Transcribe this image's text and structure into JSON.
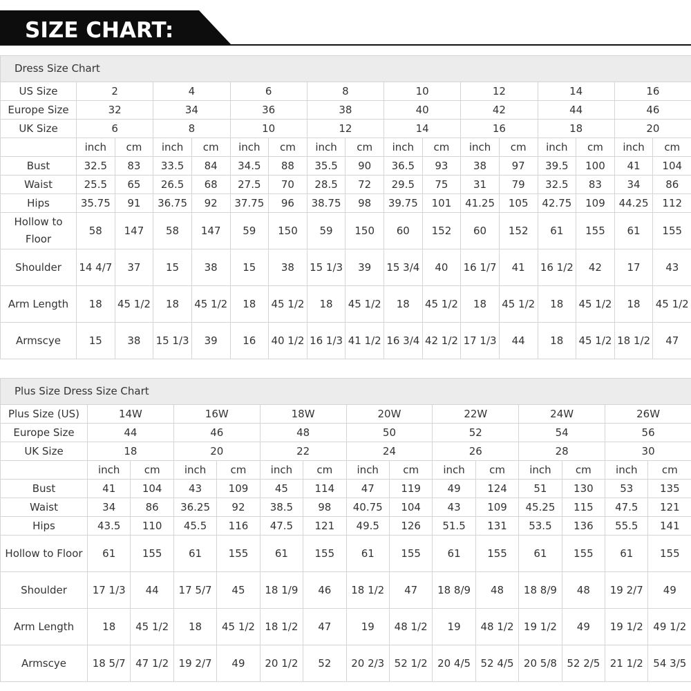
{
  "header": {
    "title": "SIZE CHART:"
  },
  "tables": [
    {
      "title": "Dress Size Chart",
      "size_rows": [
        {
          "label": "US Size",
          "values": [
            2,
            4,
            6,
            8,
            10,
            12,
            14,
            16
          ]
        },
        {
          "label": "Europe Size",
          "values": [
            32,
            34,
            36,
            38,
            40,
            42,
            44,
            46
          ]
        },
        {
          "label": "UK Size",
          "values": [
            6,
            8,
            10,
            12,
            14,
            16,
            18,
            20
          ]
        }
      ],
      "units": [
        "inch",
        "cm",
        "inch",
        "cm",
        "inch",
        "cm",
        "inch",
        "cm",
        "inch",
        "cm",
        "inch",
        "cm",
        "inch",
        "cm",
        "inch",
        "cm"
      ],
      "rows": [
        {
          "label": "Bust",
          "values": [
            32.5,
            83,
            33.5,
            84,
            34.5,
            88,
            35.5,
            90,
            36.5,
            93,
            38,
            97,
            39.5,
            100,
            41,
            104
          ]
        },
        {
          "label": "Waist",
          "values": [
            25.5,
            65,
            26.5,
            68,
            27.5,
            70,
            28.5,
            72,
            29.5,
            75,
            31,
            79,
            32.5,
            83,
            34,
            86
          ]
        },
        {
          "label": "Hips",
          "values": [
            35.75,
            91,
            36.75,
            92,
            37.75,
            96,
            38.75,
            98,
            39.75,
            101,
            41.25,
            105,
            42.75,
            109,
            44.25,
            112
          ]
        },
        {
          "label": "Hollow to Floor",
          "values": [
            58,
            147,
            58,
            147,
            59,
            150,
            59,
            150,
            60,
            152,
            60,
            152,
            61,
            155,
            61,
            155
          ]
        },
        {
          "label": "Shoulder",
          "values": [
            "14 4/7",
            37,
            15,
            38,
            15,
            38,
            "15 1/3",
            39,
            "15 3/4",
            40,
            "16 1/7",
            41,
            "16 1/2",
            42,
            17,
            43
          ]
        },
        {
          "label": "Arm Length",
          "values": [
            18,
            "45 1/2",
            18,
            "45 1/2",
            18,
            "45 1/2",
            18,
            "45 1/2",
            18,
            "45 1/2",
            18,
            "45 1/2",
            18,
            "45 1/2",
            18,
            "45 1/2"
          ]
        },
        {
          "label": "Armscye",
          "values": [
            15,
            38,
            "15 1/3",
            39,
            16,
            "40 1/2",
            "16 1/3",
            "41 1/2",
            "16 3/4",
            "42 1/2",
            "17 1/3",
            44,
            18,
            "45 1/2",
            "18 1/2",
            47
          ]
        }
      ]
    },
    {
      "title": "Plus Size Dress Size Chart",
      "size_rows": [
        {
          "label": "Plus Size (US)",
          "values": [
            "14W",
            "16W",
            "18W",
            "20W",
            "22W",
            "24W",
            "26W"
          ]
        },
        {
          "label": "Europe Size",
          "values": [
            44,
            46,
            48,
            50,
            52,
            54,
            56
          ]
        },
        {
          "label": "UK Size",
          "values": [
            18,
            20,
            22,
            24,
            26,
            28,
            30
          ]
        }
      ],
      "units": [
        "inch",
        "cm",
        "inch",
        "cm",
        "inch",
        "cm",
        "inch",
        "cm",
        "inch",
        "cm",
        "inch",
        "cm",
        "inch",
        "cm"
      ],
      "rows": [
        {
          "label": "Bust",
          "values": [
            41,
            104,
            43,
            109,
            45,
            114,
            47,
            119,
            49,
            124,
            51,
            130,
            53,
            135
          ]
        },
        {
          "label": "Waist",
          "values": [
            34,
            86,
            36.25,
            92,
            38.5,
            98,
            40.75,
            104,
            43,
            109,
            45.25,
            115,
            47.5,
            121
          ]
        },
        {
          "label": "Hips",
          "values": [
            43.5,
            110,
            45.5,
            116,
            47.5,
            121,
            49.5,
            126,
            51.5,
            131,
            53.5,
            136,
            55.5,
            141
          ]
        },
        {
          "label": "Hollow to Floor",
          "values": [
            61,
            155,
            61,
            155,
            61,
            155,
            61,
            155,
            61,
            155,
            61,
            155,
            61,
            155
          ]
        },
        {
          "label": "Shoulder",
          "values": [
            "17 1/3",
            44,
            "17 5/7",
            45,
            "18 1/9",
            46,
            "18 1/2",
            47,
            "18 8/9",
            48,
            "18 8/9",
            48,
            "19 2/7",
            49
          ]
        },
        {
          "label": "Arm Length",
          "values": [
            18,
            "45 1/2",
            18,
            "45 1/2",
            "18 1/2",
            47,
            19,
            "48 1/2",
            19,
            "48 1/2",
            "19 1/2",
            49,
            "19 1/2",
            "49 1/2"
          ]
        },
        {
          "label": "Armscye",
          "values": [
            "18 5/7",
            "47 1/2",
            "19 2/7",
            49,
            "20 1/2",
            52,
            "20 2/3",
            "52 1/2",
            "20 4/5",
            "52 4/5",
            "20 5/8",
            "52 2/5",
            "21 1/2",
            "54 3/5"
          ]
        }
      ]
    }
  ]
}
